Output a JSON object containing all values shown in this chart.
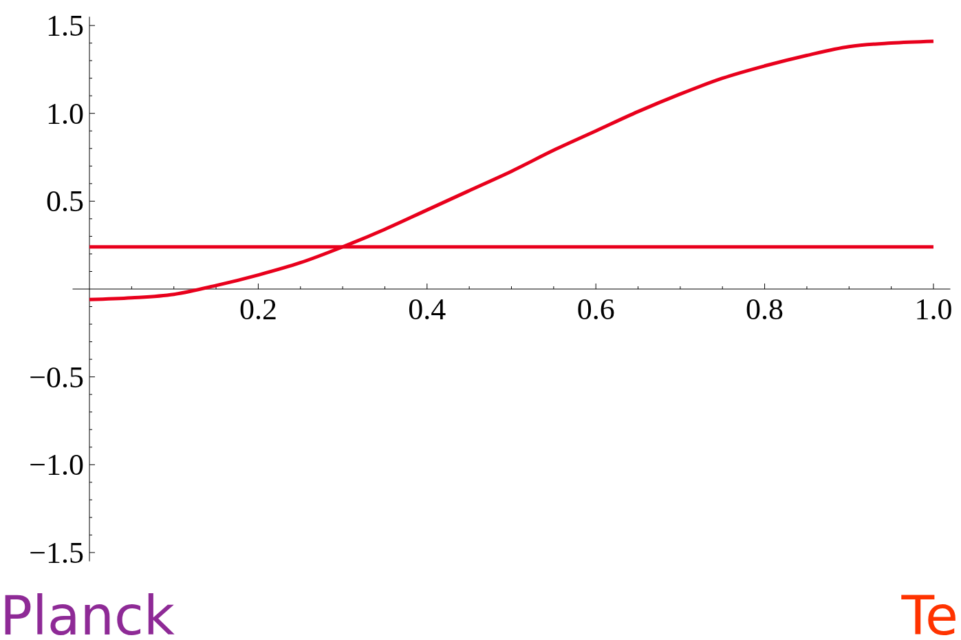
{
  "chart_data": {
    "type": "line",
    "xlim": [
      -0.02,
      1.02
    ],
    "ylim": [
      -1.55,
      1.55
    ],
    "xticks": [
      {
        "value": 0.05,
        "label": null
      },
      {
        "value": 0.1,
        "label": null
      },
      {
        "value": 0.15,
        "label": null
      },
      {
        "value": 0.2,
        "label": "0.2"
      },
      {
        "value": 0.25,
        "label": null
      },
      {
        "value": 0.3,
        "label": null
      },
      {
        "value": 0.35,
        "label": null
      },
      {
        "value": 0.4,
        "label": "0.4"
      },
      {
        "value": 0.45,
        "label": null
      },
      {
        "value": 0.5,
        "label": null
      },
      {
        "value": 0.55,
        "label": null
      },
      {
        "value": 0.6,
        "label": "0.6"
      },
      {
        "value": 0.65,
        "label": null
      },
      {
        "value": 0.7,
        "label": null
      },
      {
        "value": 0.75,
        "label": null
      },
      {
        "value": 0.8,
        "label": "0.8"
      },
      {
        "value": 0.85,
        "label": null
      },
      {
        "value": 0.9,
        "label": null
      },
      {
        "value": 0.95,
        "label": null
      },
      {
        "value": 1.0,
        "label": "1.0"
      }
    ],
    "yticks": [
      {
        "value": -1.5,
        "label": "−1.5"
      },
      {
        "value": -1.4,
        "label": null
      },
      {
        "value": -1.3,
        "label": null
      },
      {
        "value": -1.2,
        "label": null
      },
      {
        "value": -1.1,
        "label": null
      },
      {
        "value": -1.0,
        "label": "−1.0"
      },
      {
        "value": -0.9,
        "label": null
      },
      {
        "value": -0.8,
        "label": null
      },
      {
        "value": -0.7,
        "label": null
      },
      {
        "value": -0.6,
        "label": null
      },
      {
        "value": -0.5,
        "label": "−0.5"
      },
      {
        "value": -0.4,
        "label": null
      },
      {
        "value": -0.3,
        "label": null
      },
      {
        "value": -0.2,
        "label": null
      },
      {
        "value": -0.1,
        "label": null
      },
      {
        "value": 0.1,
        "label": null
      },
      {
        "value": 0.2,
        "label": null
      },
      {
        "value": 0.3,
        "label": null
      },
      {
        "value": 0.4,
        "label": null
      },
      {
        "value": 0.5,
        "label": "0.5"
      },
      {
        "value": 0.6,
        "label": null
      },
      {
        "value": 0.7,
        "label": null
      },
      {
        "value": 0.8,
        "label": null
      },
      {
        "value": 0.9,
        "label": null
      },
      {
        "value": 1.0,
        "label": "1.0"
      },
      {
        "value": 1.1,
        "label": null
      },
      {
        "value": 1.2,
        "label": null
      },
      {
        "value": 1.3,
        "label": null
      },
      {
        "value": 1.4,
        "label": null
      },
      {
        "value": 1.5,
        "label": "1.5"
      }
    ],
    "series": [
      {
        "color": "#e8001c",
        "x": [
          0,
          0.05,
          0.1,
          0.15,
          0.2,
          0.25,
          0.3,
          0.35,
          0.4,
          0.45,
          0.5,
          0.55,
          0.6,
          0.65,
          0.7,
          0.75,
          0.8,
          0.85,
          0.9,
          0.95,
          1.0
        ],
        "values": [
          -0.06,
          -0.05,
          -0.03,
          0.02,
          0.08,
          0.15,
          0.24,
          0.34,
          0.45,
          0.56,
          0.67,
          0.79,
          0.9,
          1.01,
          1.11,
          1.2,
          1.27,
          1.33,
          1.38,
          1.4,
          1.41
        ]
      },
      {
        "color": "#e8001c",
        "x": [
          0,
          1.0
        ],
        "values": [
          0.24,
          0.24
        ]
      }
    ],
    "annotations": [
      "Planck",
      "Te"
    ]
  }
}
